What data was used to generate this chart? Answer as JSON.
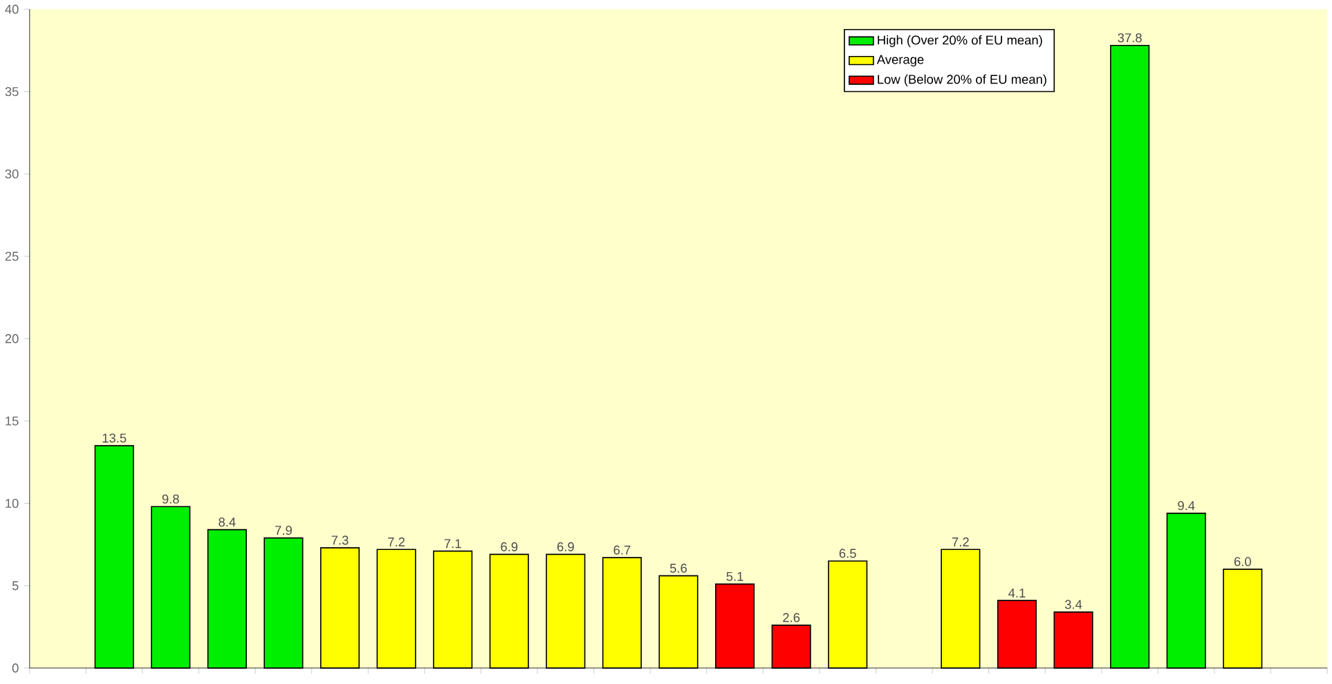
{
  "chart_data": {
    "type": "bar",
    "categories": [
      null,
      null,
      null,
      null,
      null,
      null,
      null,
      null,
      null,
      null,
      null,
      null,
      null,
      null,
      null,
      null,
      null,
      null,
      null,
      null,
      null,
      null,
      null
    ],
    "series": [
      {
        "name": "High (Over 20% of EU mean)",
        "color": "#00ee00",
        "values": [
          null,
          13.5,
          9.8,
          8.4,
          7.9,
          null,
          null,
          null,
          null,
          null,
          null,
          null,
          null,
          null,
          null,
          null,
          null,
          null,
          null,
          37.8,
          9.4,
          null,
          null
        ]
      },
      {
        "name": "Average",
        "color": "#ffff00",
        "values": [
          null,
          null,
          null,
          null,
          null,
          7.3,
          7.2,
          7.1,
          6.9,
          6.9,
          6.7,
          5.6,
          null,
          null,
          6.5,
          null,
          7.2,
          null,
          null,
          null,
          null,
          6.0,
          null
        ],
        "value_labels": [
          null,
          null,
          null,
          null,
          null,
          "7.3",
          "7.2",
          "7.1",
          "6.9",
          "6.9",
          "6.7",
          "5.6",
          null,
          null,
          "6.5",
          null,
          "7.2",
          null,
          null,
          null,
          null,
          "6.0",
          null
        ]
      },
      {
        "name": "Low (Below 20% of EU mean)",
        "color": "#ff0000",
        "values": [
          null,
          null,
          null,
          null,
          null,
          null,
          null,
          null,
          null,
          null,
          null,
          null,
          5.1,
          2.6,
          null,
          null,
          null,
          4.1,
          3.4,
          null,
          null,
          null,
          null
        ]
      }
    ],
    "ylim": [
      0,
      40
    ],
    "yticks": [
      0,
      5,
      10,
      15,
      20,
      25,
      30,
      35,
      40
    ],
    "data_labels": true,
    "legend": "top right",
    "grid": false
  }
}
